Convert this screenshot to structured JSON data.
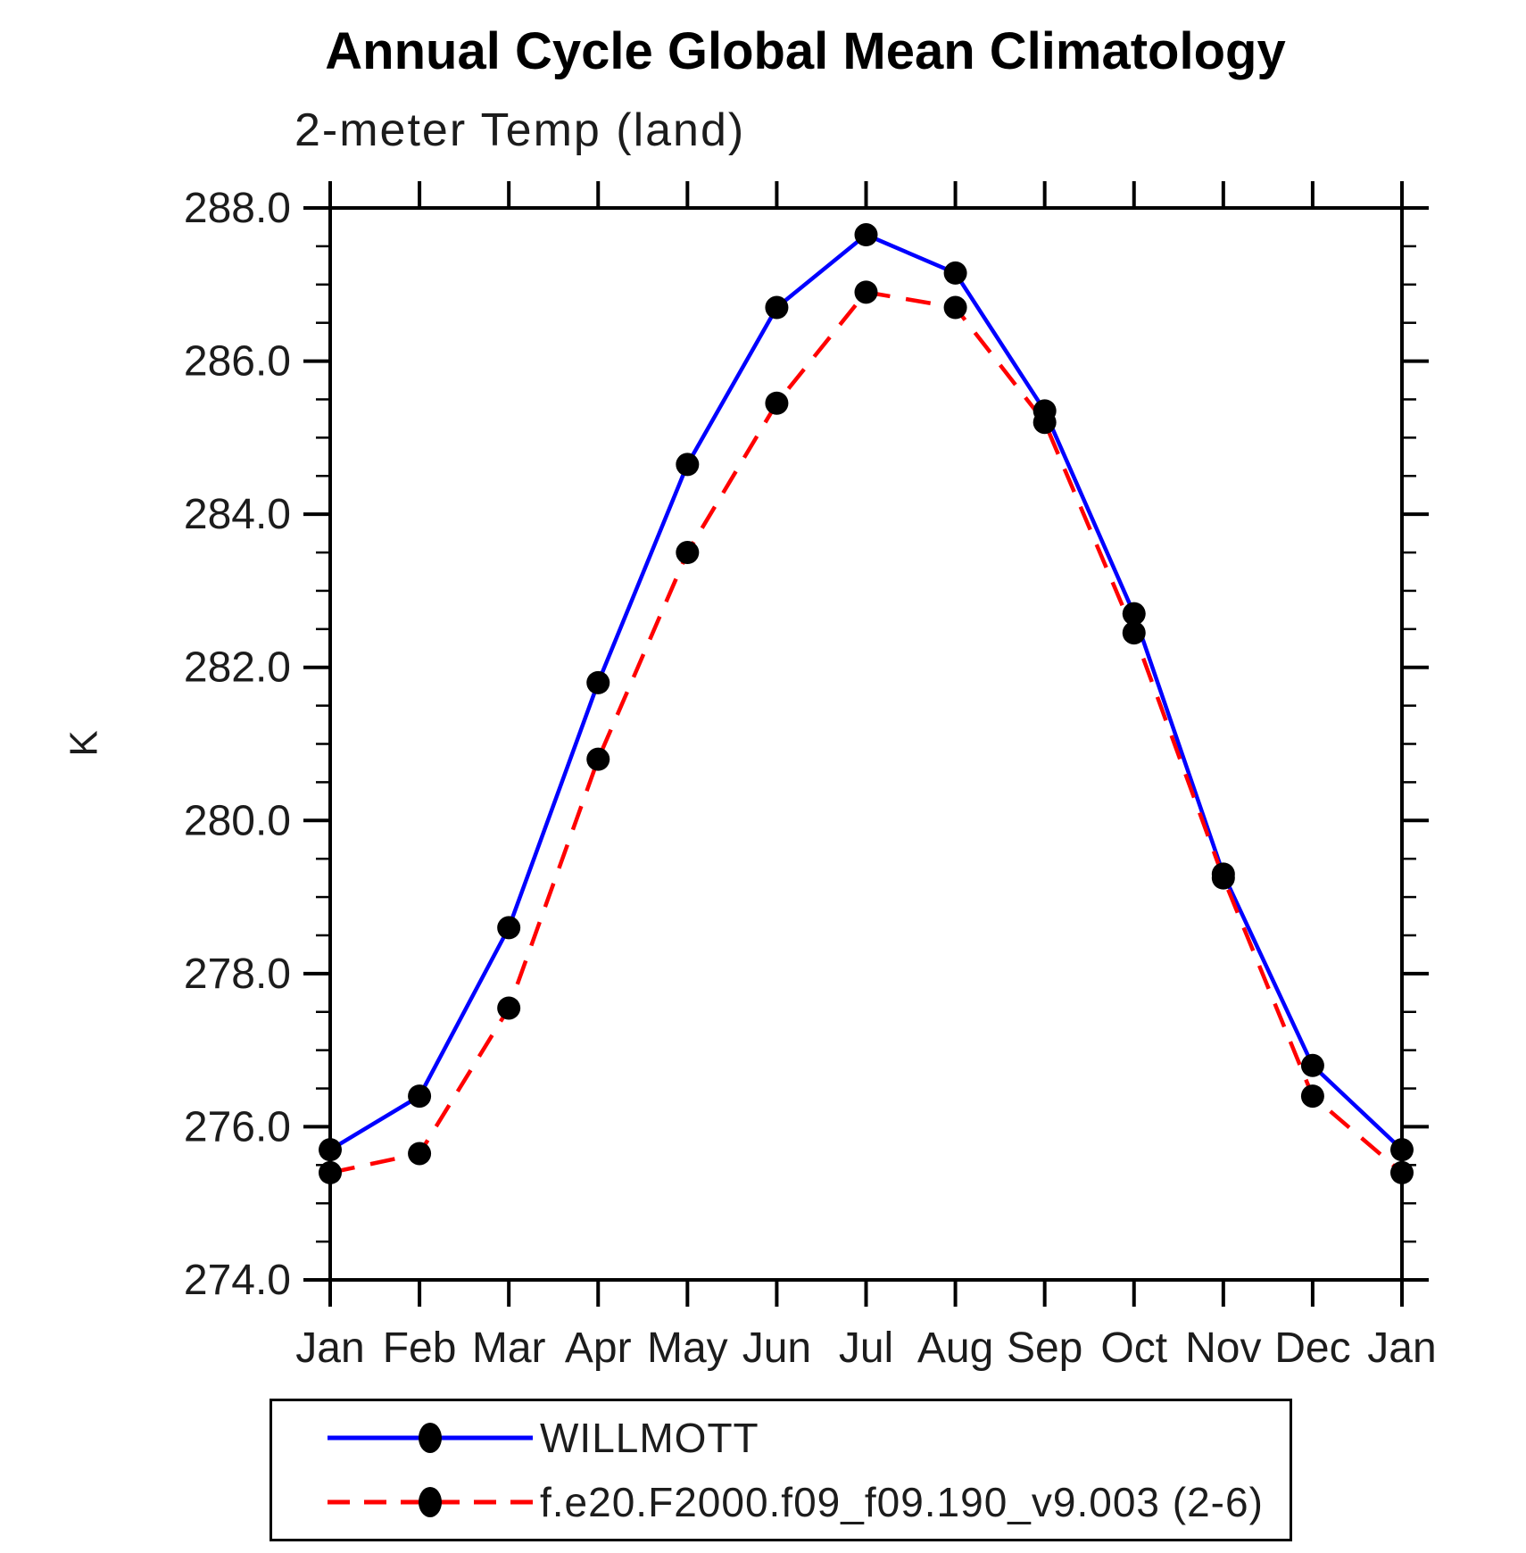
{
  "chart_data": {
    "type": "line",
    "title": "Annual Cycle Global Mean Climatology",
    "subtitle": "2-meter Temp (land)",
    "ylabel": "K",
    "xlabel": "",
    "grid": false,
    "legend_position": "bottom",
    "x_categories": [
      "Jan",
      "Feb",
      "Mar",
      "Apr",
      "May",
      "Jun",
      "Jul",
      "Aug",
      "Sep",
      "Oct",
      "Nov",
      "Dec",
      "Jan"
    ],
    "ylim": [
      274.0,
      288.0
    ],
    "ytick_major_interval": 2.0,
    "ytick_minor_interval": 0.5,
    "ytick_labels": [
      "274.0",
      "276.0",
      "278.0",
      "280.0",
      "282.0",
      "284.0",
      "286.0",
      "288.0"
    ],
    "frame_color": "#000000",
    "marker_color": "#000000",
    "series": [
      {
        "name": "WILLMOTT",
        "color": "#0000ff",
        "style": "solid",
        "marker": "filled-circle",
        "marker_color": "#000000",
        "values": [
          275.7,
          276.4,
          278.6,
          281.8,
          284.65,
          286.7,
          287.65,
          287.15,
          285.35,
          282.7,
          279.3,
          276.8,
          275.7
        ]
      },
      {
        "name": "f.e20.F2000.f09_f09.190_v9.003 (2-6)",
        "color": "#ff0000",
        "style": "dashed",
        "marker": "filled-circle",
        "marker_color": "#000000",
        "values": [
          275.4,
          275.65,
          277.55,
          280.8,
          283.5,
          285.45,
          286.9,
          286.7,
          285.2,
          282.45,
          279.25,
          276.4,
          275.4
        ]
      }
    ]
  }
}
